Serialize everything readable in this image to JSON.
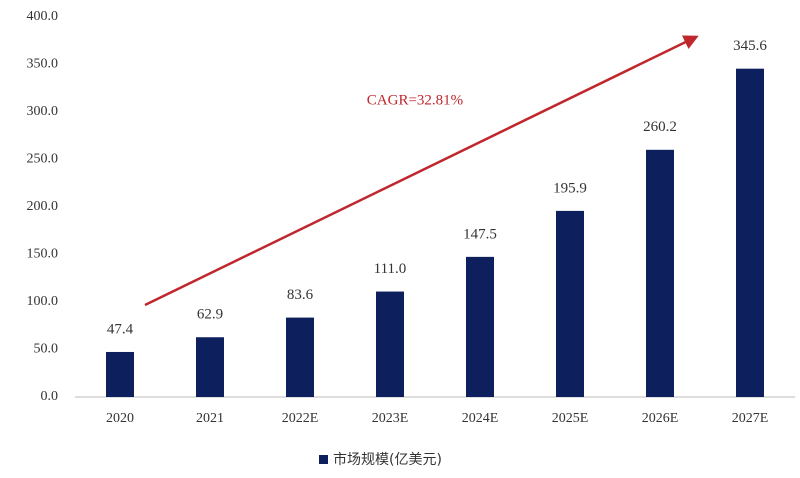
{
  "chart_data": {
    "type": "bar",
    "categories": [
      "2020",
      "2021",
      "2022E",
      "2023E",
      "2024E",
      "2025E",
      "2026E",
      "2027E"
    ],
    "values": [
      47.4,
      62.9,
      83.6,
      111.0,
      147.5,
      195.9,
      260.2,
      345.6
    ],
    "value_labels": [
      "47.4",
      "62.9",
      "83.6",
      "111.0",
      "147.5",
      "195.9",
      "260.2",
      "345.6"
    ],
    "color": "#0d1f5c",
    "series_name": "市场规模(亿美元)",
    "annotation": "CAGR=32.81%",
    "ylim": [
      0,
      400
    ],
    "yticks": [
      {
        "value": 0,
        "label": "0.0"
      },
      {
        "value": 50,
        "label": "50.0"
      },
      {
        "value": 100,
        "label": "100.0"
      },
      {
        "value": 150,
        "label": "150.0"
      },
      {
        "value": 200,
        "label": "200.0"
      },
      {
        "value": 250,
        "label": "250.0"
      },
      {
        "value": 300,
        "label": "300.0"
      },
      {
        "value": 350,
        "label": "350.0"
      },
      {
        "value": 400,
        "label": "400.0"
      }
    ],
    "grid": false
  }
}
